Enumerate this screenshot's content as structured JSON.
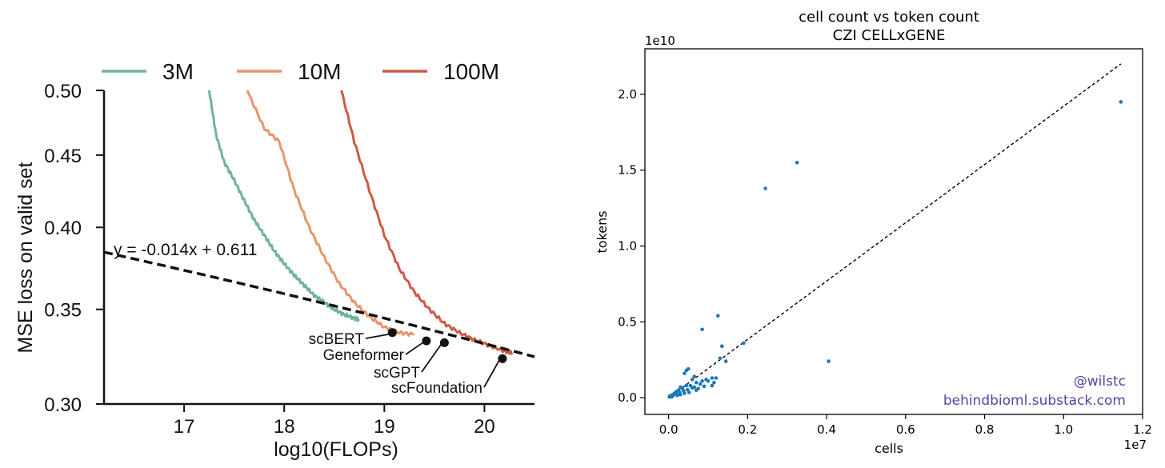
{
  "chart_data": [
    {
      "type": "line",
      "xlabel": "log10(FLOPs)",
      "ylabel": "MSE loss on valid set",
      "xlim": [
        16.2,
        20.5
      ],
      "ylim": [
        0.3,
        0.5
      ],
      "y_scale": "log",
      "xticks": [
        17,
        18,
        19,
        20
      ],
      "xtick_labels": [
        "17",
        "18",
        "19",
        "20"
      ],
      "yticks": [
        0.3,
        0.35,
        0.4,
        0.45,
        0.5
      ],
      "ytick_labels": [
        "0.30",
        "0.35",
        "0.40",
        "0.45",
        "0.50"
      ],
      "grid": false,
      "legend_position": "top",
      "series": [
        {
          "name": "3M",
          "color": "#6db596",
          "x": [
            17.25,
            17.32,
            17.4,
            17.5,
            17.6,
            17.7,
            17.8,
            17.9,
            18.0,
            18.1,
            18.2,
            18.3,
            18.4,
            18.5,
            18.6,
            18.7,
            18.75
          ],
          "y": [
            0.5,
            0.465,
            0.445,
            0.432,
            0.418,
            0.405,
            0.395,
            0.385,
            0.377,
            0.37,
            0.364,
            0.358,
            0.354,
            0.35,
            0.347,
            0.345,
            0.344
          ]
        },
        {
          "name": "10M",
          "color": "#e8956a",
          "x": [
            17.63,
            17.8,
            17.95,
            18.1,
            18.25,
            18.4,
            18.55,
            18.7,
            18.85,
            19.0,
            19.15,
            19.3
          ],
          "y": [
            0.5,
            0.47,
            0.46,
            0.425,
            0.4,
            0.381,
            0.365,
            0.354,
            0.346,
            0.34,
            0.337,
            0.336
          ]
        },
        {
          "name": "100M",
          "color": "#cc5a43",
          "x": [
            18.57,
            18.7,
            18.85,
            19.0,
            19.15,
            19.3,
            19.45,
            19.6,
            19.75,
            19.9,
            20.05,
            20.2,
            20.28
          ],
          "y": [
            0.5,
            0.46,
            0.425,
            0.395,
            0.374,
            0.36,
            0.35,
            0.342,
            0.337,
            0.333,
            0.33,
            0.327,
            0.326
          ]
        }
      ],
      "fit_line": {
        "label": "y = -0.014x + 0.611",
        "slope": -0.014,
        "intercept": 0.611,
        "color": "#111111"
      },
      "model_points": [
        {
          "name": "scBERT",
          "x": 19.08,
          "y": 0.337
        },
        {
          "name": "Geneformer",
          "x": 19.42,
          "y": 0.3325
        },
        {
          "name": "scGPT",
          "x": 19.6,
          "y": 0.3315
        },
        {
          "name": "scFoundation",
          "x": 20.18,
          "y": 0.323
        }
      ]
    },
    {
      "type": "scatter",
      "title": "cell count vs token count",
      "subtitle": "CZI CELLxGENE",
      "xlabel": "cells",
      "ylabel": "tokens",
      "x_multiplier_label": "1e7",
      "y_multiplier_label": "1e10",
      "xlim": [
        -0.06,
        1.2
      ],
      "ylim": [
        -0.11,
        2.3
      ],
      "xticks": [
        0.0,
        0.2,
        0.4,
        0.6,
        0.8,
        1.0,
        1.2
      ],
      "xtick_labels": [
        "0.0",
        "0.2",
        "0.4",
        "0.6",
        "0.8",
        "1.0",
        "1.2"
      ],
      "yticks": [
        0.0,
        0.5,
        1.0,
        1.5,
        2.0
      ],
      "ytick_labels": [
        "0.0",
        "0.5",
        "1.0",
        "1.5",
        "2.0"
      ],
      "grid": false,
      "point_color": "#1f77b4",
      "reference_line": {
        "x": [
          0.0,
          1.145
        ],
        "y": [
          0.0,
          2.2
        ],
        "style": "dashed",
        "color": "#000000"
      },
      "points": [
        [
          1.145,
          1.95
        ],
        [
          0.325,
          1.55
        ],
        [
          0.245,
          1.38
        ],
        [
          0.405,
          0.24
        ],
        [
          0.125,
          0.54
        ],
        [
          0.085,
          0.45
        ],
        [
          0.19,
          0.36
        ],
        [
          0.135,
          0.34
        ],
        [
          0.145,
          0.24
        ],
        [
          0.13,
          0.26
        ],
        [
          0.045,
          0.18
        ],
        [
          0.05,
          0.19
        ],
        [
          0.04,
          0.16
        ],
        [
          0.065,
          0.14
        ],
        [
          0.06,
          0.12
        ],
        [
          0.07,
          0.1
        ],
        [
          0.085,
          0.11
        ],
        [
          0.095,
          0.12
        ],
        [
          0.075,
          0.06
        ],
        [
          0.055,
          0.08
        ],
        [
          0.045,
          0.08
        ],
        [
          0.035,
          0.06
        ],
        [
          0.03,
          0.07
        ],
        [
          0.025,
          0.05
        ],
        [
          0.02,
          0.04
        ],
        [
          0.015,
          0.03
        ],
        [
          0.01,
          0.02
        ],
        [
          0.005,
          0.01
        ],
        [
          0.002,
          0.005
        ],
        [
          0.012,
          0.015
        ],
        [
          0.018,
          0.028
        ],
        [
          0.028,
          0.035
        ],
        [
          0.038,
          0.045
        ],
        [
          0.048,
          0.052
        ],
        [
          0.06,
          0.065
        ],
        [
          0.065,
          0.07
        ],
        [
          0.08,
          0.09
        ],
        [
          0.1,
          0.11
        ],
        [
          0.11,
          0.13
        ],
        [
          0.12,
          0.13
        ],
        [
          0.115,
          0.1
        ],
        [
          0.11,
          0.08
        ],
        [
          0.09,
          0.075
        ],
        [
          0.03,
          0.02
        ],
        [
          0.04,
          0.03
        ],
        [
          0.022,
          0.015
        ],
        [
          0.008,
          0.006
        ],
        [
          0.003,
          0.012
        ],
        [
          0.052,
          0.035
        ],
        [
          0.07,
          0.05
        ]
      ],
      "watermark": [
        "@wilstc",
        "behindbioml.substack.com"
      ],
      "watermark_color": "#5b3fa8"
    }
  ]
}
